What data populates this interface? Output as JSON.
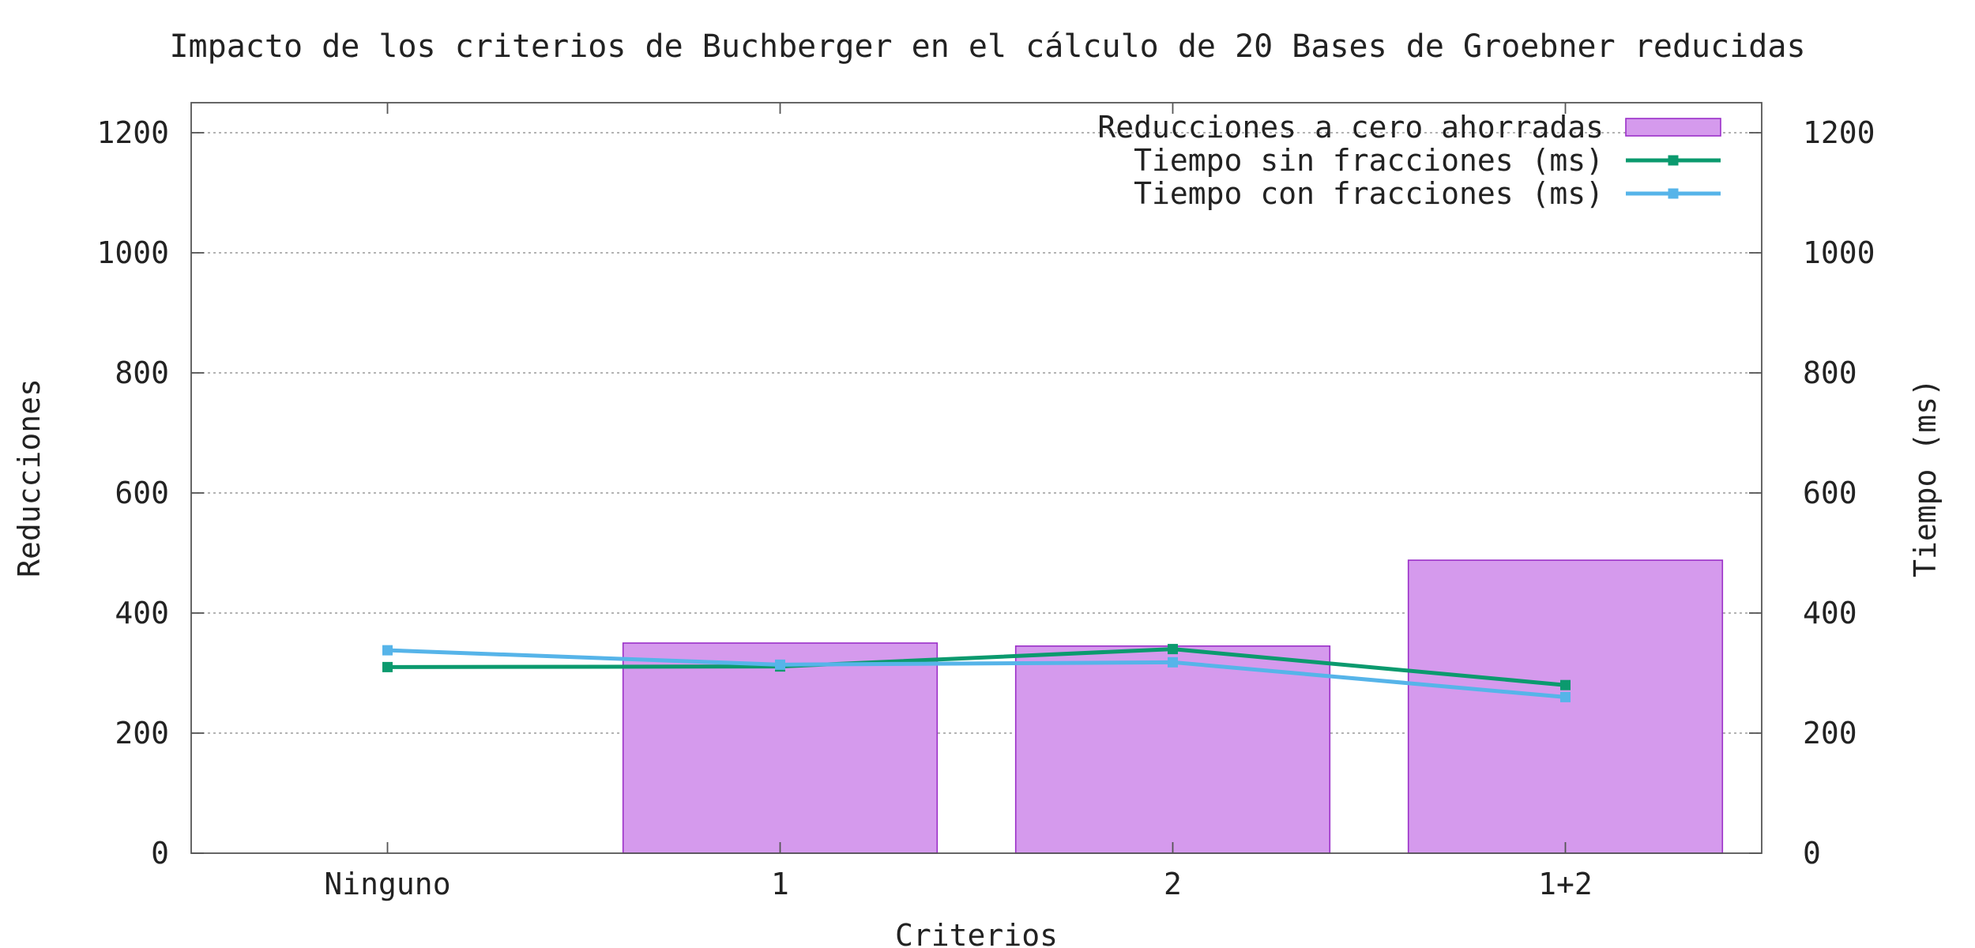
{
  "chart_data": {
    "type": "bar",
    "title": "Impacto de los criterios de Buchberger en el cálculo de 20 Bases de Groebner reducidas",
    "xlabel": "Criterios",
    "ylabel": "Reducciones",
    "y2label": "Tiempo (ms)",
    "categories": [
      "Ninguno",
      "1",
      "2",
      "1+2"
    ],
    "ylim": [
      0,
      1250
    ],
    "y2lim": [
      0,
      1250
    ],
    "yticks": [
      0,
      200,
      400,
      600,
      800,
      1000,
      1200
    ],
    "y2ticks": [
      0,
      200,
      400,
      600,
      800,
      1000,
      1200
    ],
    "grid": true,
    "legend_position": "top-right",
    "series": [
      {
        "name": "Reducciones a cero ahorradas",
        "type": "bar",
        "axis": "left",
        "color": "#d59aed",
        "edge_color": "#9b30c8",
        "values": [
          0,
          350,
          345,
          488
        ]
      },
      {
        "name": "Tiempo sin fracciones (ms)",
        "type": "line",
        "axis": "right",
        "color": "#0b9a6e",
        "values": [
          310,
          311,
          340,
          280
        ]
      },
      {
        "name": "Tiempo con fracciones (ms)",
        "type": "line",
        "axis": "right",
        "color": "#56b4e9",
        "values": [
          338,
          314,
          318,
          260
        ]
      }
    ]
  }
}
